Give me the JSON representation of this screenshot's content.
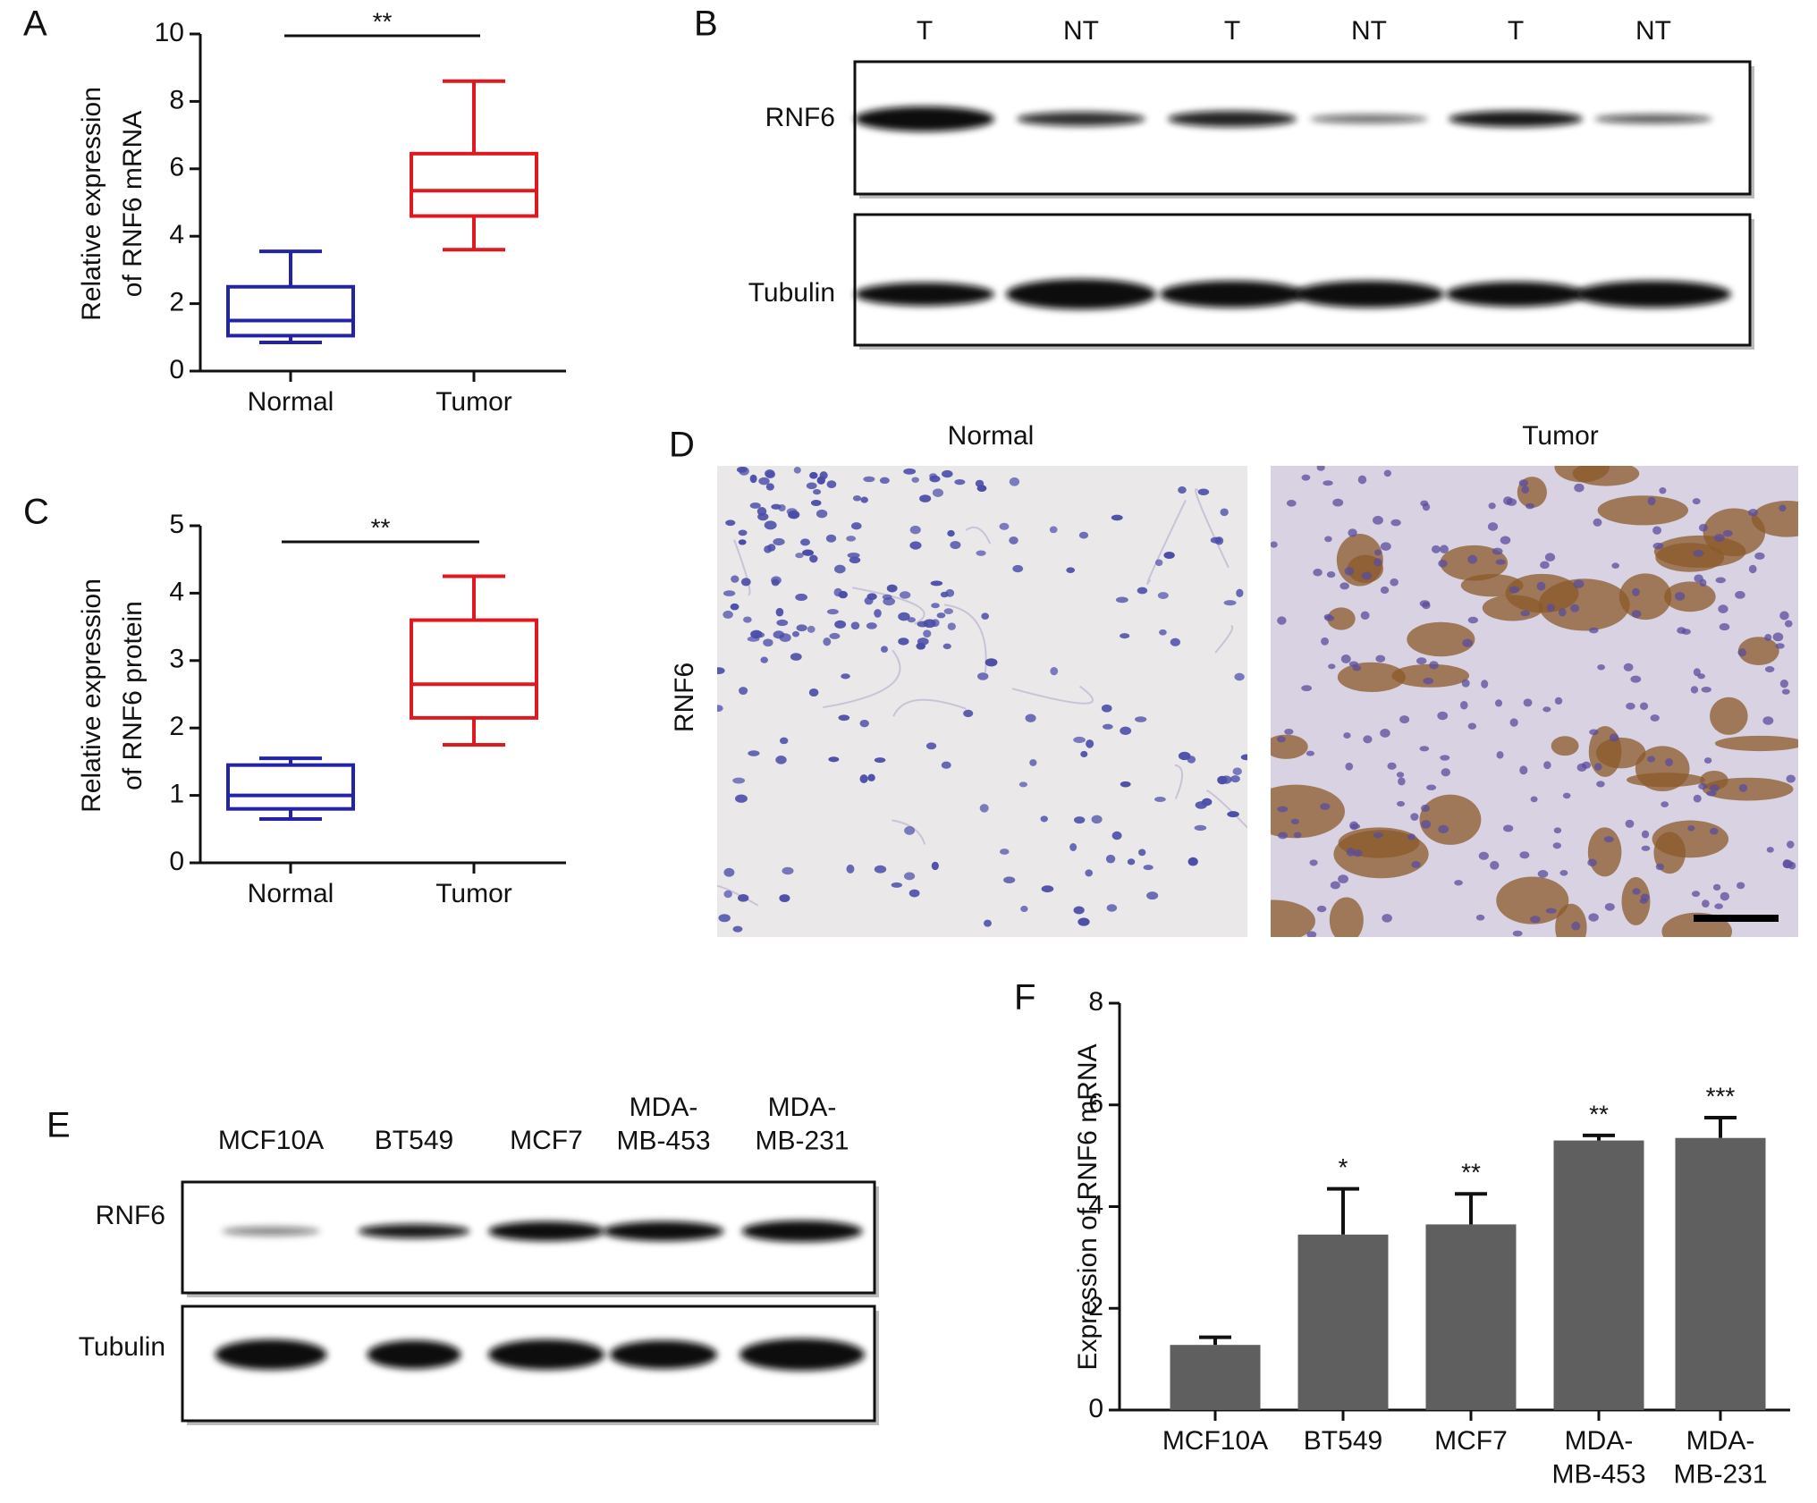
{
  "chart_data": [
    {
      "panel": "A",
      "type": "box",
      "ylabel": [
        "Relative expression",
        "of RNF6 mRNA"
      ],
      "categories": [
        "Normal",
        "Tumor"
      ],
      "boxes": [
        {
          "color": "#2323a8",
          "min": 0.85,
          "q1": 1.05,
          "median": 1.5,
          "q3": 2.5,
          "max": 3.55
        },
        {
          "color": "#e0191f",
          "min": 3.6,
          "q1": 4.6,
          "median": 5.35,
          "q3": 6.45,
          "max": 8.6
        }
      ],
      "ylim": [
        0,
        10
      ],
      "yticks": [
        0,
        2,
        4,
        6,
        8,
        10
      ],
      "significance": "**"
    },
    {
      "panel": "C",
      "type": "box",
      "ylabel": [
        "Relative expression",
        "of RNF6 protein"
      ],
      "categories": [
        "Normal",
        "Tumor"
      ],
      "boxes": [
        {
          "color": "#2323a8",
          "min": 0.65,
          "q1": 0.8,
          "median": 1.0,
          "q3": 1.45,
          "max": 1.55
        },
        {
          "color": "#e0191f",
          "min": 1.75,
          "q1": 2.15,
          "median": 2.65,
          "q3": 3.6,
          "max": 4.25
        }
      ],
      "ylim": [
        0,
        5
      ],
      "yticks": [
        0,
        1,
        2,
        3,
        4,
        5
      ],
      "significance": "**"
    },
    {
      "panel": "F",
      "type": "bar",
      "ylabel": "Expression of RNF6 mRNA",
      "categories": [
        "MCF10A",
        "BT549",
        "MCF7",
        "MDA-\nMB-453",
        "MDA-\nMB-231"
      ],
      "values": [
        1.28,
        3.45,
        3.65,
        5.3,
        5.35
      ],
      "errors": [
        0.15,
        0.9,
        0.6,
        0.1,
        0.4
      ],
      "annotations": [
        null,
        "*",
        "**",
        "**",
        "***"
      ],
      "color": "#5f5f5f",
      "ylim": [
        0,
        8
      ],
      "yticks": [
        0,
        2,
        4,
        6,
        8
      ]
    }
  ],
  "blots": [
    {
      "panel": "B",
      "lanes": [
        "T",
        "NT",
        "T",
        "NT",
        "T",
        "NT"
      ],
      "rows": [
        "RNF6",
        "Tubulin"
      ]
    },
    {
      "panel": "E",
      "lanes": [
        "MCF10A",
        "BT549",
        "MCF7",
        "MDA-\nMB-453",
        "MDA-\nMB-231"
      ],
      "rows": [
        "RNF6",
        "Tubulin"
      ]
    }
  ],
  "ihc": {
    "panel": "D",
    "columns": [
      "Normal",
      "Tumor"
    ],
    "row_label": "RNF6"
  }
}
